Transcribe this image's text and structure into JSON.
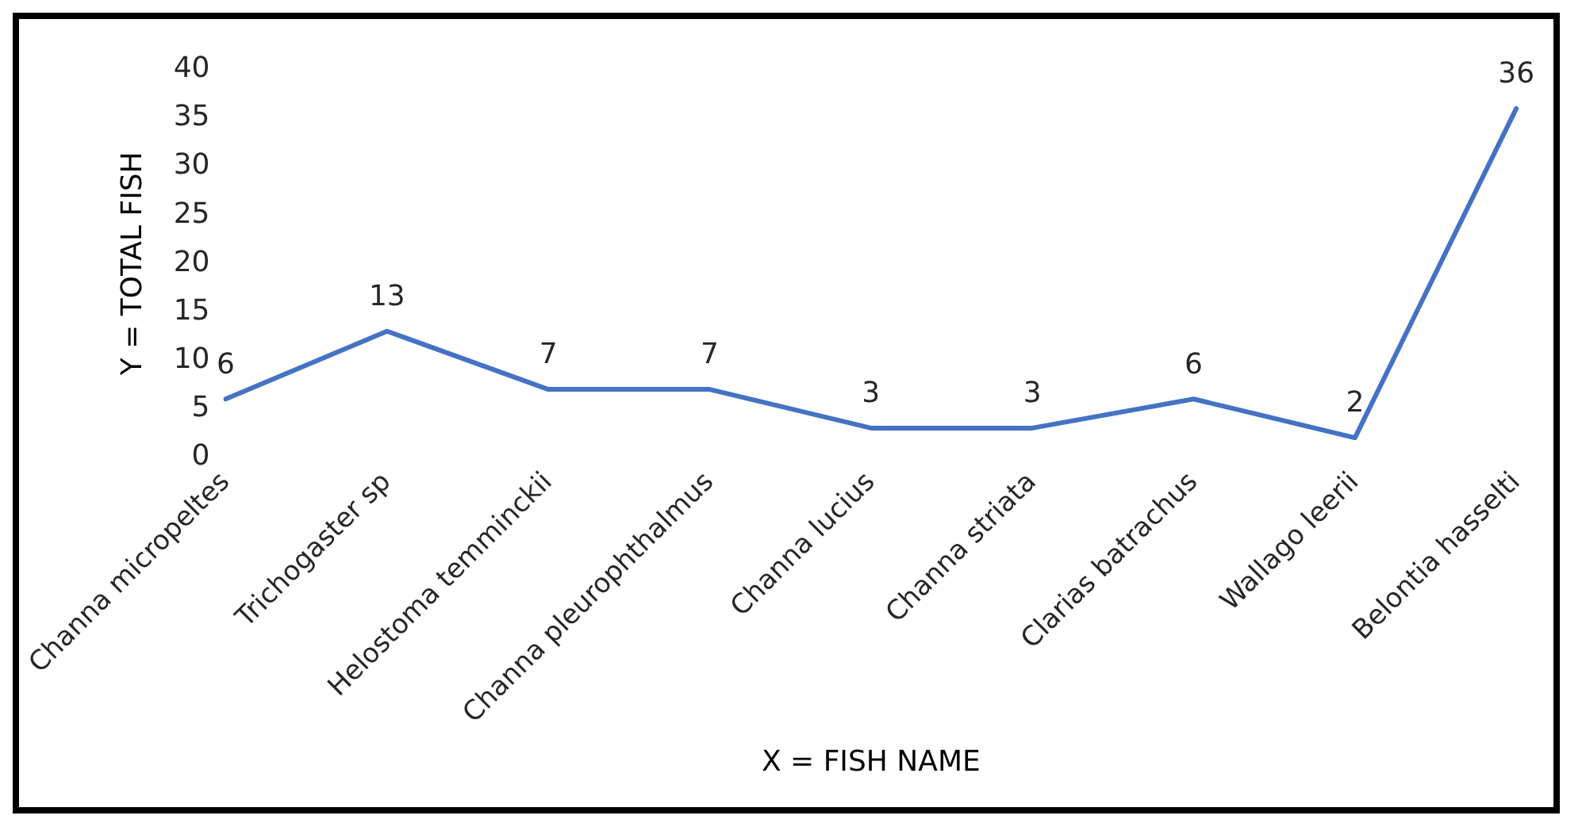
{
  "chart_data": {
    "type": "line",
    "xlabel": "X = FISH NAME",
    "ylabel": "Y = TOTAL FISH",
    "categories": [
      "Channa micropeltes",
      "Trichogaster sp",
      "Helostoma temminckii",
      "Channa pleurophthalmus",
      "Channa lucius",
      "Channa striata",
      "Clarias batrachus",
      "Wallago leerii",
      "Belontia hasselti"
    ],
    "series": [
      {
        "color": "#4472c4",
        "values": [
          6,
          13,
          7,
          7,
          3,
          3,
          6,
          2,
          36
        ]
      }
    ],
    "ylim": [
      0,
      40
    ],
    "yticks": [
      0,
      5,
      10,
      15,
      20,
      25,
      30,
      35,
      40
    ],
    "grid": false,
    "legend": false,
    "marker": "none",
    "line_style": "solid",
    "data_labels": true
  }
}
